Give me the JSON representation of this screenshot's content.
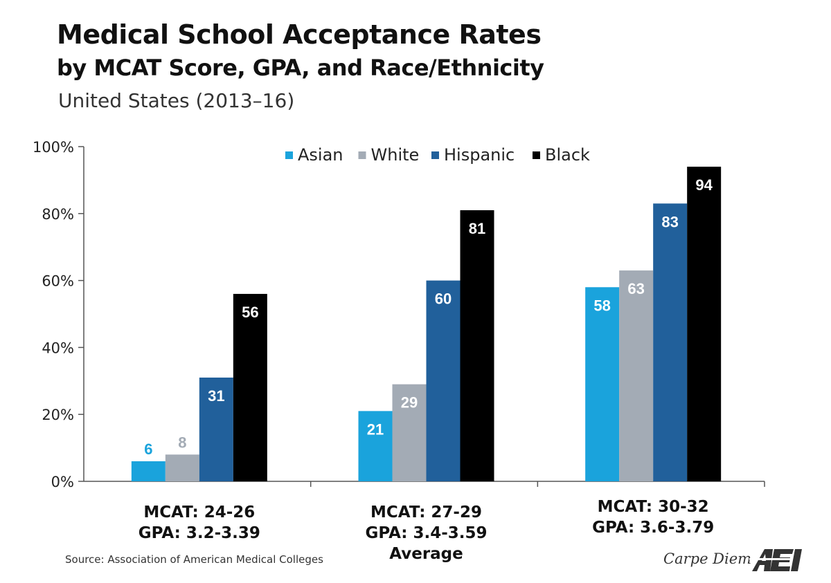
{
  "chart_data": {
    "type": "bar",
    "title": "Medical School Acceptance Rates",
    "subtitle": "by MCAT Score, GPA, and Race/Ethnicity",
    "region": "United States (2013–16)",
    "categories": [
      {
        "lines": [
          "MCAT: 24-26",
          "GPA: 3.2-3.39"
        ]
      },
      {
        "lines": [
          "MCAT: 27-29",
          "GPA: 3.4-3.59",
          "Average"
        ]
      },
      {
        "lines": [
          "MCAT: 30-32",
          "GPA: 3.6-3.79"
        ]
      }
    ],
    "series": [
      {
        "name": "Asian",
        "color": "#1aa3dc",
        "values": [
          6,
          21,
          58
        ]
      },
      {
        "name": "White",
        "color": "#a3abb5",
        "values": [
          8,
          29,
          63
        ]
      },
      {
        "name": "Hispanic",
        "color": "#21609b",
        "values": [
          31,
          60,
          83
        ]
      },
      {
        "name": "Black",
        "color": "#000000",
        "values": [
          56,
          81,
          94
        ]
      }
    ],
    "ylim": [
      0,
      100
    ],
    "yticks": [
      0,
      20,
      40,
      60,
      80,
      100
    ],
    "ytick_suffix": "%",
    "legend_position": "top",
    "grid": false
  },
  "source": "Source: Association of American Medical Colleges",
  "brand": {
    "text": "Carpe Diem",
    "logo": "AEI"
  }
}
